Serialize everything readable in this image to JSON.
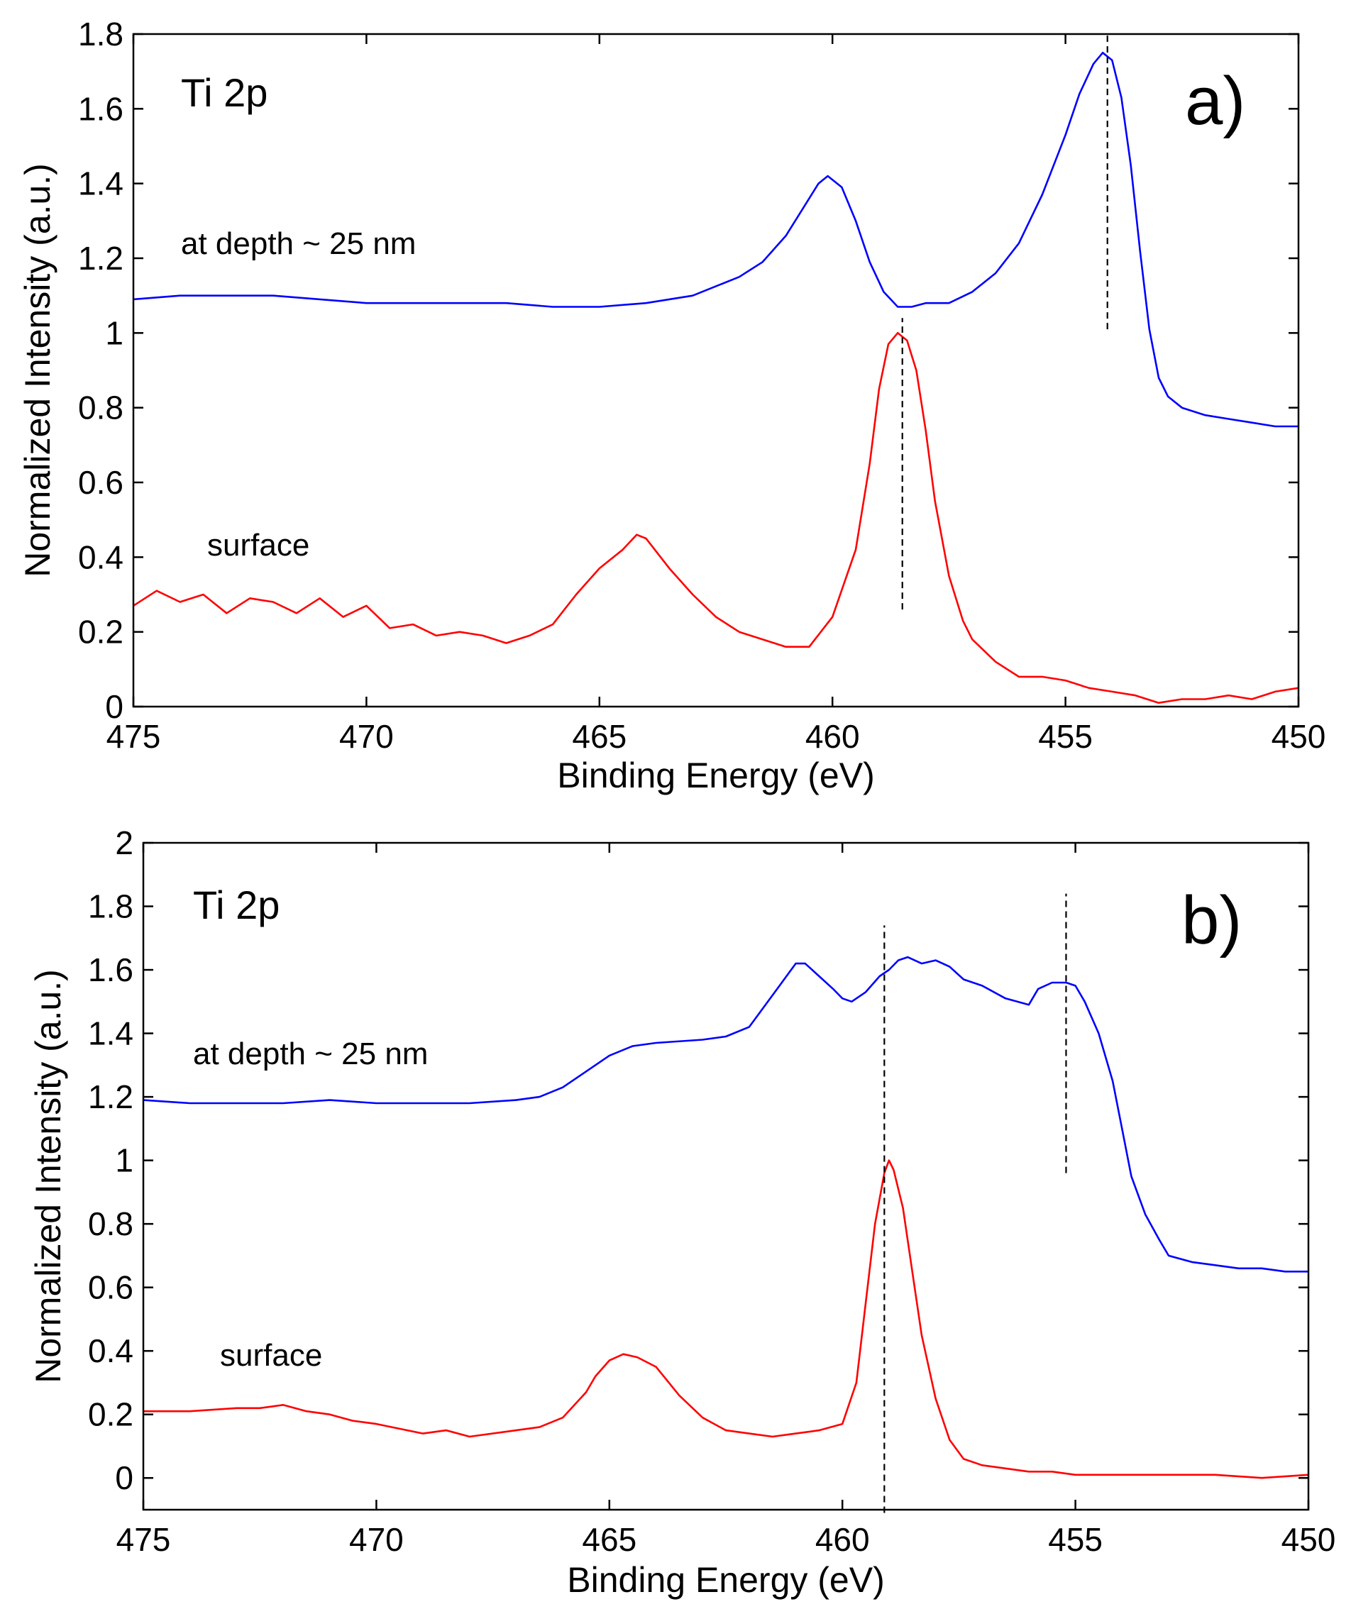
{
  "chart_data": [
    {
      "type": "line",
      "panel_label": "a)",
      "title": "Ti 2p",
      "xlabel": "Binding Energy (eV)",
      "ylabel": "Normalized Intensity  (a.u.)",
      "xlim": [
        475,
        450
      ],
      "ylim": [
        0,
        1.8
      ],
      "x_ticks": [
        475,
        470,
        465,
        460,
        455,
        450
      ],
      "y_ticks": [
        0,
        0.2,
        0.4,
        0.6,
        0.8,
        1,
        1.2,
        1.4,
        1.6,
        1.8
      ],
      "y_tick_labels": [
        "0",
        "0.2",
        "0.4",
        "0.6",
        "0.8",
        "1",
        "1.2",
        "1.4",
        "1.6",
        "1.8"
      ],
      "series": [
        {
          "name": "at depth ~ 25 nm",
          "color": "#0000ff",
          "x": [
            475,
            474,
            473,
            472,
            471,
            470,
            469,
            468,
            467,
            466,
            465,
            464,
            463,
            462,
            461.5,
            461,
            460.6,
            460.3,
            460.1,
            459.8,
            459.5,
            459.2,
            458.9,
            458.6,
            458.3,
            458,
            457.5,
            457,
            456.5,
            456,
            455.5,
            455,
            454.7,
            454.4,
            454.2,
            454,
            453.8,
            453.6,
            453.4,
            453.2,
            453,
            452.8,
            452.5,
            452,
            451.5,
            451,
            450.5,
            450
          ],
          "y": [
            1.09,
            1.1,
            1.1,
            1.1,
            1.09,
            1.08,
            1.08,
            1.08,
            1.08,
            1.07,
            1.07,
            1.08,
            1.1,
            1.15,
            1.19,
            1.26,
            1.34,
            1.4,
            1.42,
            1.39,
            1.3,
            1.19,
            1.11,
            1.07,
            1.07,
            1.08,
            1.08,
            1.11,
            1.16,
            1.24,
            1.37,
            1.53,
            1.64,
            1.72,
            1.75,
            1.73,
            1.63,
            1.45,
            1.22,
            1.01,
            0.88,
            0.83,
            0.8,
            0.78,
            0.77,
            0.76,
            0.75,
            0.75
          ]
        },
        {
          "name": "surface",
          "color": "#ff0000",
          "x": [
            475,
            474.5,
            474,
            473.5,
            473,
            472.5,
            472,
            471.5,
            471,
            470.5,
            470,
            469.5,
            469,
            468.5,
            468,
            467.5,
            467,
            466.5,
            466,
            465.5,
            465,
            464.5,
            464.2,
            464,
            463.5,
            463,
            462.5,
            462,
            461.5,
            461,
            460.5,
            460,
            459.5,
            459.2,
            459,
            458.8,
            458.6,
            458.4,
            458.2,
            458,
            457.8,
            457.5,
            457.2,
            457,
            456.5,
            456,
            455.5,
            455,
            454.5,
            454,
            453.5,
            453,
            452.5,
            452,
            451.5,
            451,
            450.5,
            450
          ],
          "y": [
            0.27,
            0.31,
            0.28,
            0.3,
            0.25,
            0.29,
            0.28,
            0.25,
            0.29,
            0.24,
            0.27,
            0.21,
            0.22,
            0.19,
            0.2,
            0.19,
            0.17,
            0.19,
            0.22,
            0.3,
            0.37,
            0.42,
            0.46,
            0.45,
            0.37,
            0.3,
            0.24,
            0.2,
            0.18,
            0.16,
            0.16,
            0.24,
            0.42,
            0.65,
            0.85,
            0.97,
            1.0,
            0.98,
            0.9,
            0.74,
            0.55,
            0.35,
            0.23,
            0.18,
            0.12,
            0.08,
            0.08,
            0.07,
            0.05,
            0.04,
            0.03,
            0.01,
            0.02,
            0.02,
            0.03,
            0.02,
            0.04,
            0.05
          ]
        }
      ],
      "reference_lines": [
        {
          "x": 454.1,
          "y_from": 1.01,
          "y_to": 1.8
        },
        {
          "x": 458.5,
          "y_from": 0.26,
          "y_to": 1.04
        }
      ],
      "annotations": [
        "at depth ~ 25 nm",
        "surface"
      ]
    },
    {
      "type": "line",
      "panel_label": "b)",
      "title": "Ti 2p",
      "xlabel": "Binding Energy (eV)",
      "ylabel": "Normalized Intensity  (a.u.)",
      "xlim": [
        475,
        450
      ],
      "ylim": [
        -0.1,
        2.0
      ],
      "x_ticks": [
        475,
        470,
        465,
        460,
        455,
        450
      ],
      "y_ticks": [
        0,
        0.2,
        0.4,
        0.6,
        0.8,
        1,
        1.2,
        1.4,
        1.6,
        1.8,
        2
      ],
      "y_tick_labels": [
        "0",
        "0.2",
        "0.4",
        "0.6",
        "0.8",
        "1",
        "1.2",
        "1.4",
        "1.6",
        "1.8",
        "2"
      ],
      "series": [
        {
          "name": "at depth ~ 25 nm",
          "color": "#0000ff",
          "x": [
            475,
            474,
            473,
            472,
            471,
            470,
            469,
            468,
            467,
            466.5,
            466,
            465.5,
            465,
            464.5,
            464,
            463,
            462.5,
            462,
            461.5,
            461.2,
            461,
            460.8,
            460.5,
            460.2,
            460,
            459.8,
            459.5,
            459.2,
            459,
            458.8,
            458.6,
            458.3,
            458,
            457.7,
            457.4,
            457,
            456.5,
            456,
            455.8,
            455.5,
            455.2,
            455,
            454.8,
            454.5,
            454.2,
            454,
            453.8,
            453.5,
            453.2,
            453,
            452.5,
            452,
            451.5,
            451,
            450.5,
            450
          ],
          "y": [
            1.19,
            1.18,
            1.18,
            1.18,
            1.19,
            1.18,
            1.18,
            1.18,
            1.19,
            1.2,
            1.23,
            1.28,
            1.33,
            1.36,
            1.37,
            1.38,
            1.39,
            1.42,
            1.52,
            1.58,
            1.62,
            1.62,
            1.58,
            1.54,
            1.51,
            1.5,
            1.53,
            1.58,
            1.6,
            1.63,
            1.64,
            1.62,
            1.63,
            1.61,
            1.57,
            1.55,
            1.51,
            1.49,
            1.54,
            1.56,
            1.56,
            1.55,
            1.5,
            1.4,
            1.25,
            1.1,
            0.95,
            0.83,
            0.75,
            0.7,
            0.68,
            0.67,
            0.66,
            0.66,
            0.65,
            0.65
          ]
        },
        {
          "name": "surface",
          "color": "#ff0000",
          "x": [
            475,
            474,
            473,
            472.5,
            472,
            471.5,
            471,
            470.5,
            470,
            469,
            468.5,
            468,
            467,
            466.5,
            466,
            465.5,
            465.3,
            465,
            464.7,
            464.4,
            464,
            463.5,
            463,
            462.5,
            462,
            461.5,
            461,
            460.5,
            460,
            459.7,
            459.5,
            459.3,
            459.1,
            459,
            458.9,
            458.7,
            458.5,
            458.3,
            458,
            457.7,
            457.4,
            457,
            456.5,
            456,
            455.5,
            455,
            454,
            453,
            452,
            451,
            450
          ],
          "y": [
            0.21,
            0.21,
            0.22,
            0.22,
            0.23,
            0.21,
            0.2,
            0.18,
            0.17,
            0.14,
            0.15,
            0.13,
            0.15,
            0.16,
            0.19,
            0.27,
            0.32,
            0.37,
            0.39,
            0.38,
            0.35,
            0.26,
            0.19,
            0.15,
            0.14,
            0.13,
            0.14,
            0.15,
            0.17,
            0.3,
            0.55,
            0.8,
            0.96,
            1.0,
            0.97,
            0.85,
            0.65,
            0.45,
            0.25,
            0.12,
            0.06,
            0.04,
            0.03,
            0.02,
            0.02,
            0.01,
            0.01,
            0.01,
            0.01,
            0.0,
            0.01
          ]
        }
      ],
      "reference_lines": [
        {
          "x": 459.1,
          "y_from": -0.11,
          "y_to": 1.74
        },
        {
          "x": 455.2,
          "y_from": 0.96,
          "y_to": 1.84
        }
      ],
      "annotations": [
        "at depth ~ 25 nm",
        "surface"
      ]
    }
  ]
}
